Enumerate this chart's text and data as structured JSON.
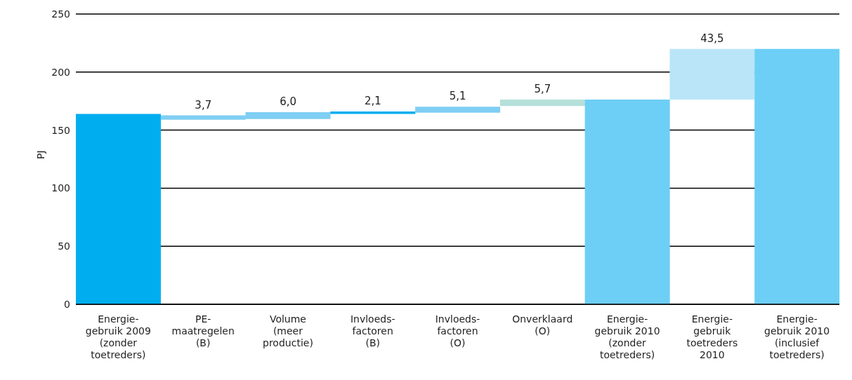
{
  "chart_data": {
    "type": "bar",
    "ylabel": "PJ",
    "categories": [
      "Energie-\ngebruik 2009\n(zonder\ntoetreders)",
      "PE-\nmaatregelen\n(B)",
      "Volume\n(meer\nproductie)",
      "Invloeds-\nfactoren\n(B)",
      "Invloeds-\nfactoren\n(O)",
      "Onverklaard\n(O)",
      "Energie-\ngebruik 2010\n(zonder\ntoetreders)",
      "Energie-\ngebruik\ntoetreders\n2010",
      "Energie-\ngebruik 2010\n(inclusief\ntoetreders)"
    ],
    "values": [
      164,
      3.7,
      6.0,
      2.1,
      5.1,
      5.7,
      176.4,
      43.5,
      219.9
    ],
    "base": [
      0,
      159,
      159.5,
      164,
      165,
      170.7,
      0,
      176.4,
      0
    ],
    "colors": [
      "#00aeef",
      "#7fcef3",
      "#7fcef3",
      "#00aeef",
      "#7fcef3",
      "#b5e0da",
      "#6dcff6",
      "#bae5f8",
      "#6dcff6"
    ],
    "value_labels": [
      null,
      "3,7",
      "6,0",
      "2,1",
      "5,1",
      "5,7",
      null,
      "43,5",
      null
    ],
    "ylim": [
      0,
      250
    ],
    "yticks": [
      0,
      50,
      100,
      150,
      200,
      250
    ],
    "grid": "y"
  }
}
